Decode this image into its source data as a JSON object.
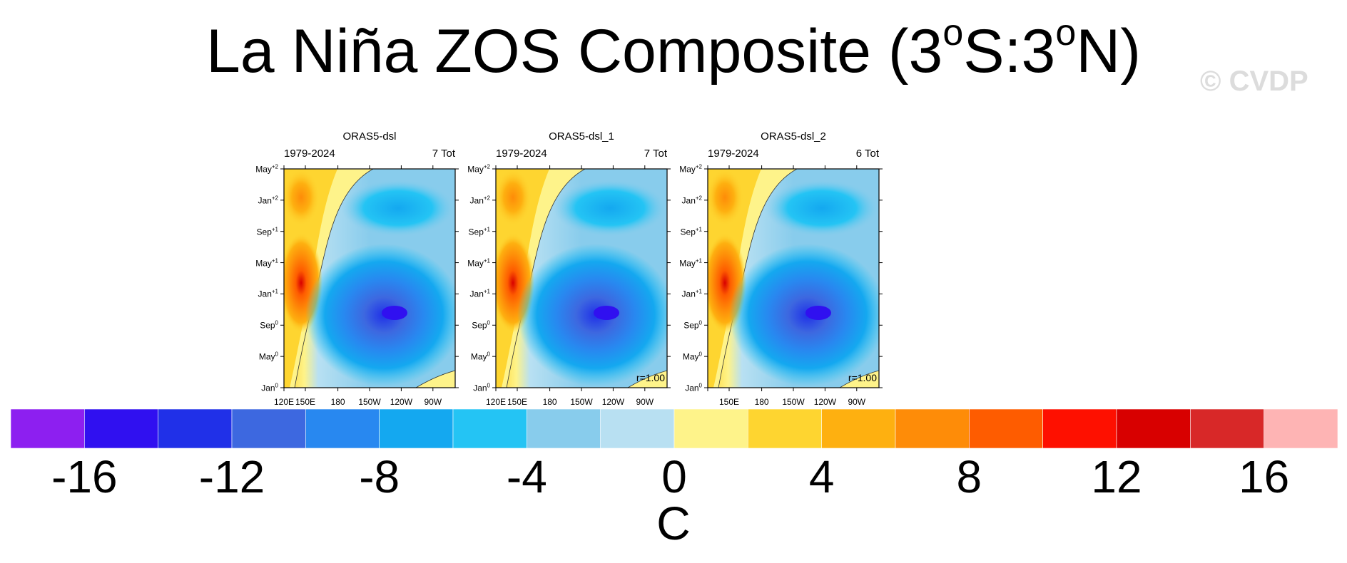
{
  "figure": {
    "title_parts": [
      "La Niña ZOS Composite (3",
      "o",
      "S:3",
      "o",
      "N)"
    ],
    "watermark": "© CVDP"
  },
  "chart_data": [
    {
      "type": "heatmap",
      "title": "ORAS5-dsl",
      "left_label": "1979-2024",
      "right_label": "7 Tot",
      "r_label": "",
      "x_ticks": [
        "120E",
        "150E",
        "180",
        "150W",
        "120W",
        "90W"
      ],
      "y_ticks": [
        [
          "Jan",
          "0"
        ],
        [
          "May",
          "0"
        ],
        [
          "Sep",
          "0"
        ],
        [
          "Jan",
          "+1"
        ],
        [
          "May",
          "+1"
        ],
        [
          "Sep",
          "+1"
        ],
        [
          "Jan",
          "+2"
        ],
        [
          "May",
          "+2"
        ]
      ]
    },
    {
      "type": "heatmap",
      "title": "ORAS5-dsl_1",
      "left_label": "1979-2024",
      "right_label": "7 Tot",
      "r_label": "r=1.00",
      "x_ticks": [
        "120E",
        "150E",
        "180",
        "150W",
        "120W",
        "90W"
      ],
      "y_ticks": [
        [
          "Jan",
          "0"
        ],
        [
          "May",
          "0"
        ],
        [
          "Sep",
          "0"
        ],
        [
          "Jan",
          "+1"
        ],
        [
          "May",
          "+1"
        ],
        [
          "Sep",
          "+1"
        ],
        [
          "Jan",
          "+2"
        ],
        [
          "May",
          "+2"
        ]
      ]
    },
    {
      "type": "heatmap",
      "title": "ORAS5-dsl_2",
      "left_label": "1979-2024",
      "right_label": "6 Tot",
      "r_label": "r=1.00",
      "x_ticks": [
        "",
        "150E",
        "180",
        "150W",
        "120W",
        "90W"
      ],
      "y_ticks": [
        [
          "Jan",
          "0"
        ],
        [
          "May",
          "0"
        ],
        [
          "Sep",
          "0"
        ],
        [
          "Jan",
          "+1"
        ],
        [
          "May",
          "+1"
        ],
        [
          "Sep",
          "+1"
        ],
        [
          "Jan",
          "+2"
        ],
        [
          "May",
          "+2"
        ]
      ]
    }
  ],
  "colorbar": {
    "units": "C",
    "labels": [
      "-16",
      "-12",
      "-8",
      "-4",
      "0",
      "4",
      "8",
      "12",
      "16"
    ],
    "colors": [
      "#8d1ff0",
      "#3010f0",
      "#2030e8",
      "#3d68e0",
      "#2888f0",
      "#14a8f0",
      "#24c4f4",
      "#88ccec",
      "#b8e0f2",
      "#fef38a",
      "#fed530",
      "#feb010",
      "#fe8c08",
      "#fe5c00",
      "#fe1000",
      "#d80000",
      "#d82828",
      "#feb4b4"
    ]
  }
}
